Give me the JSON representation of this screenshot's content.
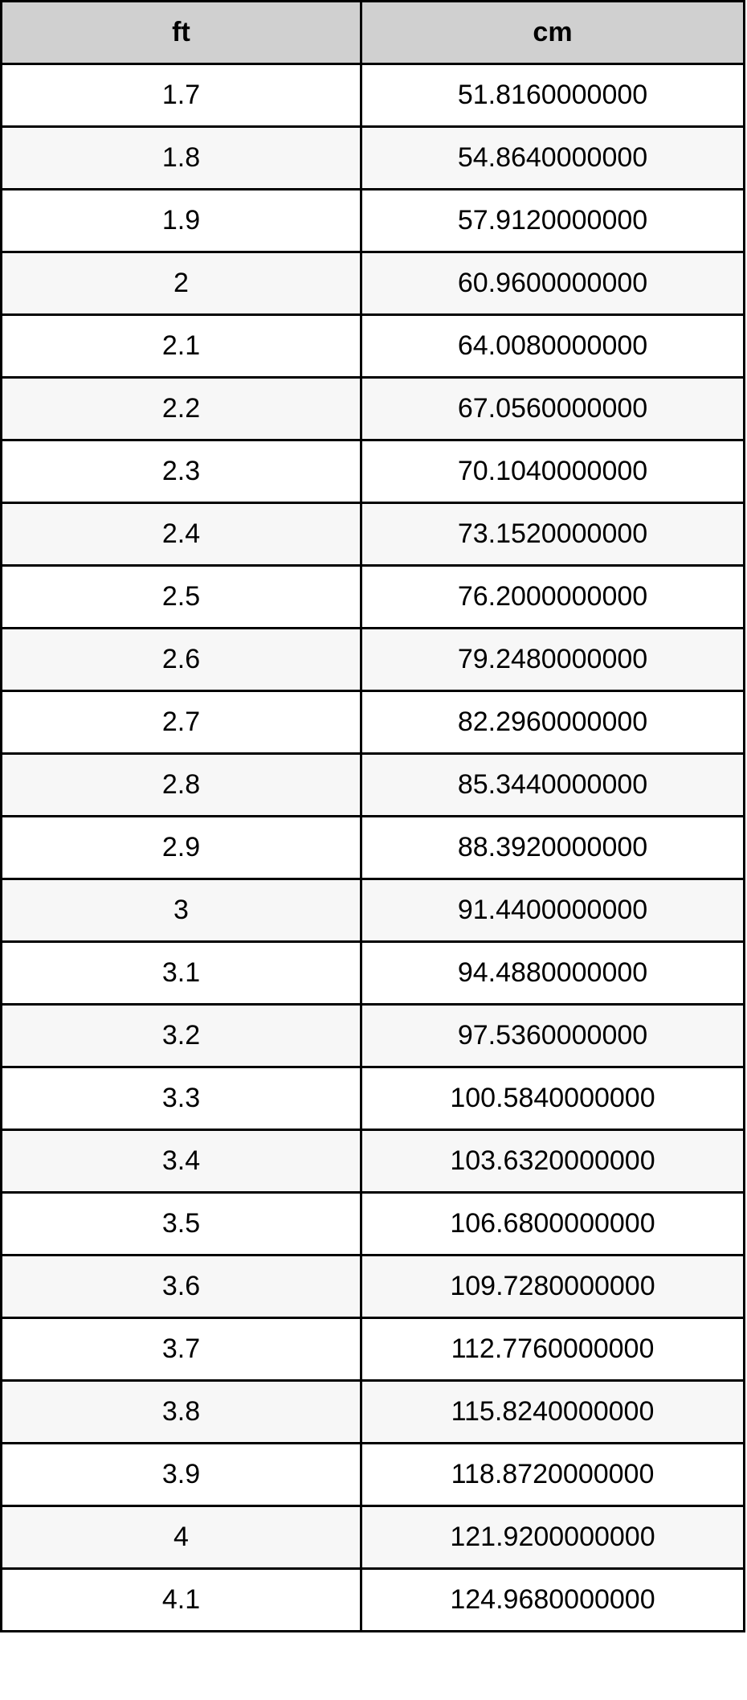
{
  "table": {
    "headers": [
      "ft",
      "cm"
    ],
    "rows": [
      [
        "1.7",
        "51.8160000000"
      ],
      [
        "1.8",
        "54.8640000000"
      ],
      [
        "1.9",
        "57.9120000000"
      ],
      [
        "2",
        "60.9600000000"
      ],
      [
        "2.1",
        "64.0080000000"
      ],
      [
        "2.2",
        "67.0560000000"
      ],
      [
        "2.3",
        "70.1040000000"
      ],
      [
        "2.4",
        "73.1520000000"
      ],
      [
        "2.5",
        "76.2000000000"
      ],
      [
        "2.6",
        "79.2480000000"
      ],
      [
        "2.7",
        "82.2960000000"
      ],
      [
        "2.8",
        "85.3440000000"
      ],
      [
        "2.9",
        "88.3920000000"
      ],
      [
        "3",
        "91.4400000000"
      ],
      [
        "3.1",
        "94.4880000000"
      ],
      [
        "3.2",
        "97.5360000000"
      ],
      [
        "3.3",
        "100.5840000000"
      ],
      [
        "3.4",
        "103.6320000000"
      ],
      [
        "3.5",
        "106.6800000000"
      ],
      [
        "3.6",
        "109.7280000000"
      ],
      [
        "3.7",
        "112.7760000000"
      ],
      [
        "3.8",
        "115.8240000000"
      ],
      [
        "3.9",
        "118.8720000000"
      ],
      [
        "4",
        "121.9200000000"
      ],
      [
        "4.1",
        "124.9680000000"
      ]
    ]
  },
  "colors": {
    "header_bg": "#d0d0d0",
    "alt_row_bg": "#f7f7f7",
    "border": "#000000"
  }
}
